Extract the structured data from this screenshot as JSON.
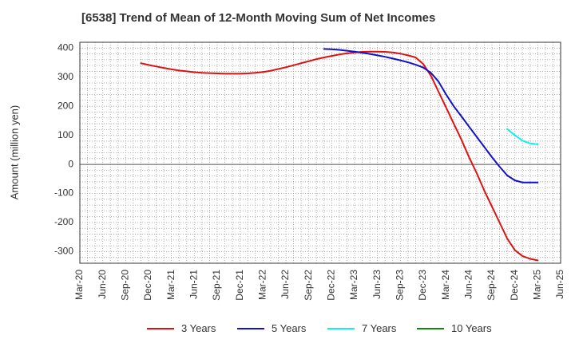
{
  "title": "[6538]  Trend of Mean of 12-Month Moving Sum of Net Incomes",
  "chart_data": {
    "type": "line",
    "title": "[6538]  Trend of Mean of 12-Month Moving Sum of Net Incomes",
    "xlabel": "",
    "ylabel": "Amount (million yen)",
    "ylim": [
      -340,
      420
    ],
    "y_ticks": [
      400,
      300,
      200,
      100,
      0,
      -100,
      -200,
      -300
    ],
    "x_ticks": [
      "Mar-20",
      "Jun-20",
      "Sep-20",
      "Dec-20",
      "Mar-21",
      "Jun-21",
      "Sep-21",
      "Dec-21",
      "Mar-22",
      "Jun-22",
      "Sep-22",
      "Dec-22",
      "Mar-23",
      "Jun-23",
      "Sep-23",
      "Dec-23",
      "Mar-24",
      "Jun-24",
      "Sep-24",
      "Dec-24",
      "Mar-25",
      "Jun-25"
    ],
    "grid": true,
    "legend_position": "bottom",
    "x_unit": "month",
    "series": [
      {
        "name": "3 Years",
        "color": "#dd1111",
        "x": [
          "Nov-20",
          "Dec-20",
          "Jan-21",
          "Feb-21",
          "Mar-21",
          "Apr-21",
          "May-21",
          "Jun-21",
          "Jul-21",
          "Aug-21",
          "Sep-21",
          "Oct-21",
          "Nov-21",
          "Dec-21",
          "Jan-22",
          "Feb-22",
          "Mar-22",
          "Apr-22",
          "May-22",
          "Jun-22",
          "Jul-22",
          "Aug-22",
          "Sep-22",
          "Oct-22",
          "Nov-22",
          "Dec-22",
          "Jan-23",
          "Feb-23",
          "Mar-23",
          "Apr-23",
          "May-23",
          "Jun-23",
          "Jul-23",
          "Aug-23",
          "Sep-23",
          "Oct-23",
          "Nov-23",
          "Dec-23",
          "Jan-24",
          "Feb-24",
          "Mar-24",
          "Apr-24",
          "May-24",
          "Jun-24",
          "Jul-24",
          "Aug-24",
          "Sep-24",
          "Oct-24",
          "Nov-24",
          "Dec-24",
          "Jan-25",
          "Feb-25",
          "Mar-25"
        ],
        "values": [
          348,
          342,
          337,
          332,
          327,
          323,
          320,
          317,
          315,
          314,
          313,
          312,
          312,
          312,
          313,
          315,
          318,
          322,
          328,
          334,
          341,
          348,
          355,
          362,
          368,
          373,
          378,
          382,
          385,
          387,
          388,
          388,
          387,
          385,
          381,
          375,
          368,
          345,
          305,
          250,
          195,
          140,
          85,
          25,
          -30,
          -90,
          -145,
          -200,
          -255,
          -295,
          -315,
          -325,
          -330
        ]
      },
      {
        "name": "5 Years",
        "color": "#1111cc",
        "x": [
          "Nov-22",
          "Dec-22",
          "Jan-23",
          "Feb-23",
          "Mar-23",
          "Apr-23",
          "May-23",
          "Jun-23",
          "Jul-23",
          "Aug-23",
          "Sep-23",
          "Oct-23",
          "Nov-23",
          "Dec-23",
          "Jan-24",
          "Feb-24",
          "Mar-24",
          "Apr-24",
          "May-24",
          "Jun-24",
          "Jul-24",
          "Aug-24",
          "Sep-24",
          "Oct-24",
          "Nov-24",
          "Dec-24",
          "Jan-25",
          "Feb-25",
          "Mar-25"
        ],
        "values": [
          397,
          396,
          394,
          391,
          388,
          384,
          380,
          375,
          370,
          364,
          358,
          351,
          343,
          333,
          315,
          285,
          240,
          200,
          165,
          130,
          95,
          60,
          25,
          -8,
          -38,
          -55,
          -62,
          -62,
          -62
        ]
      },
      {
        "name": "7 Years",
        "color": "#11eeee",
        "x": [
          "Nov-24",
          "Dec-24",
          "Jan-25",
          "Feb-25",
          "Mar-25"
        ],
        "values": [
          122,
          100,
          82,
          72,
          69
        ]
      },
      {
        "name": "10 Years",
        "color": "#118811",
        "x": [],
        "values": []
      }
    ]
  }
}
